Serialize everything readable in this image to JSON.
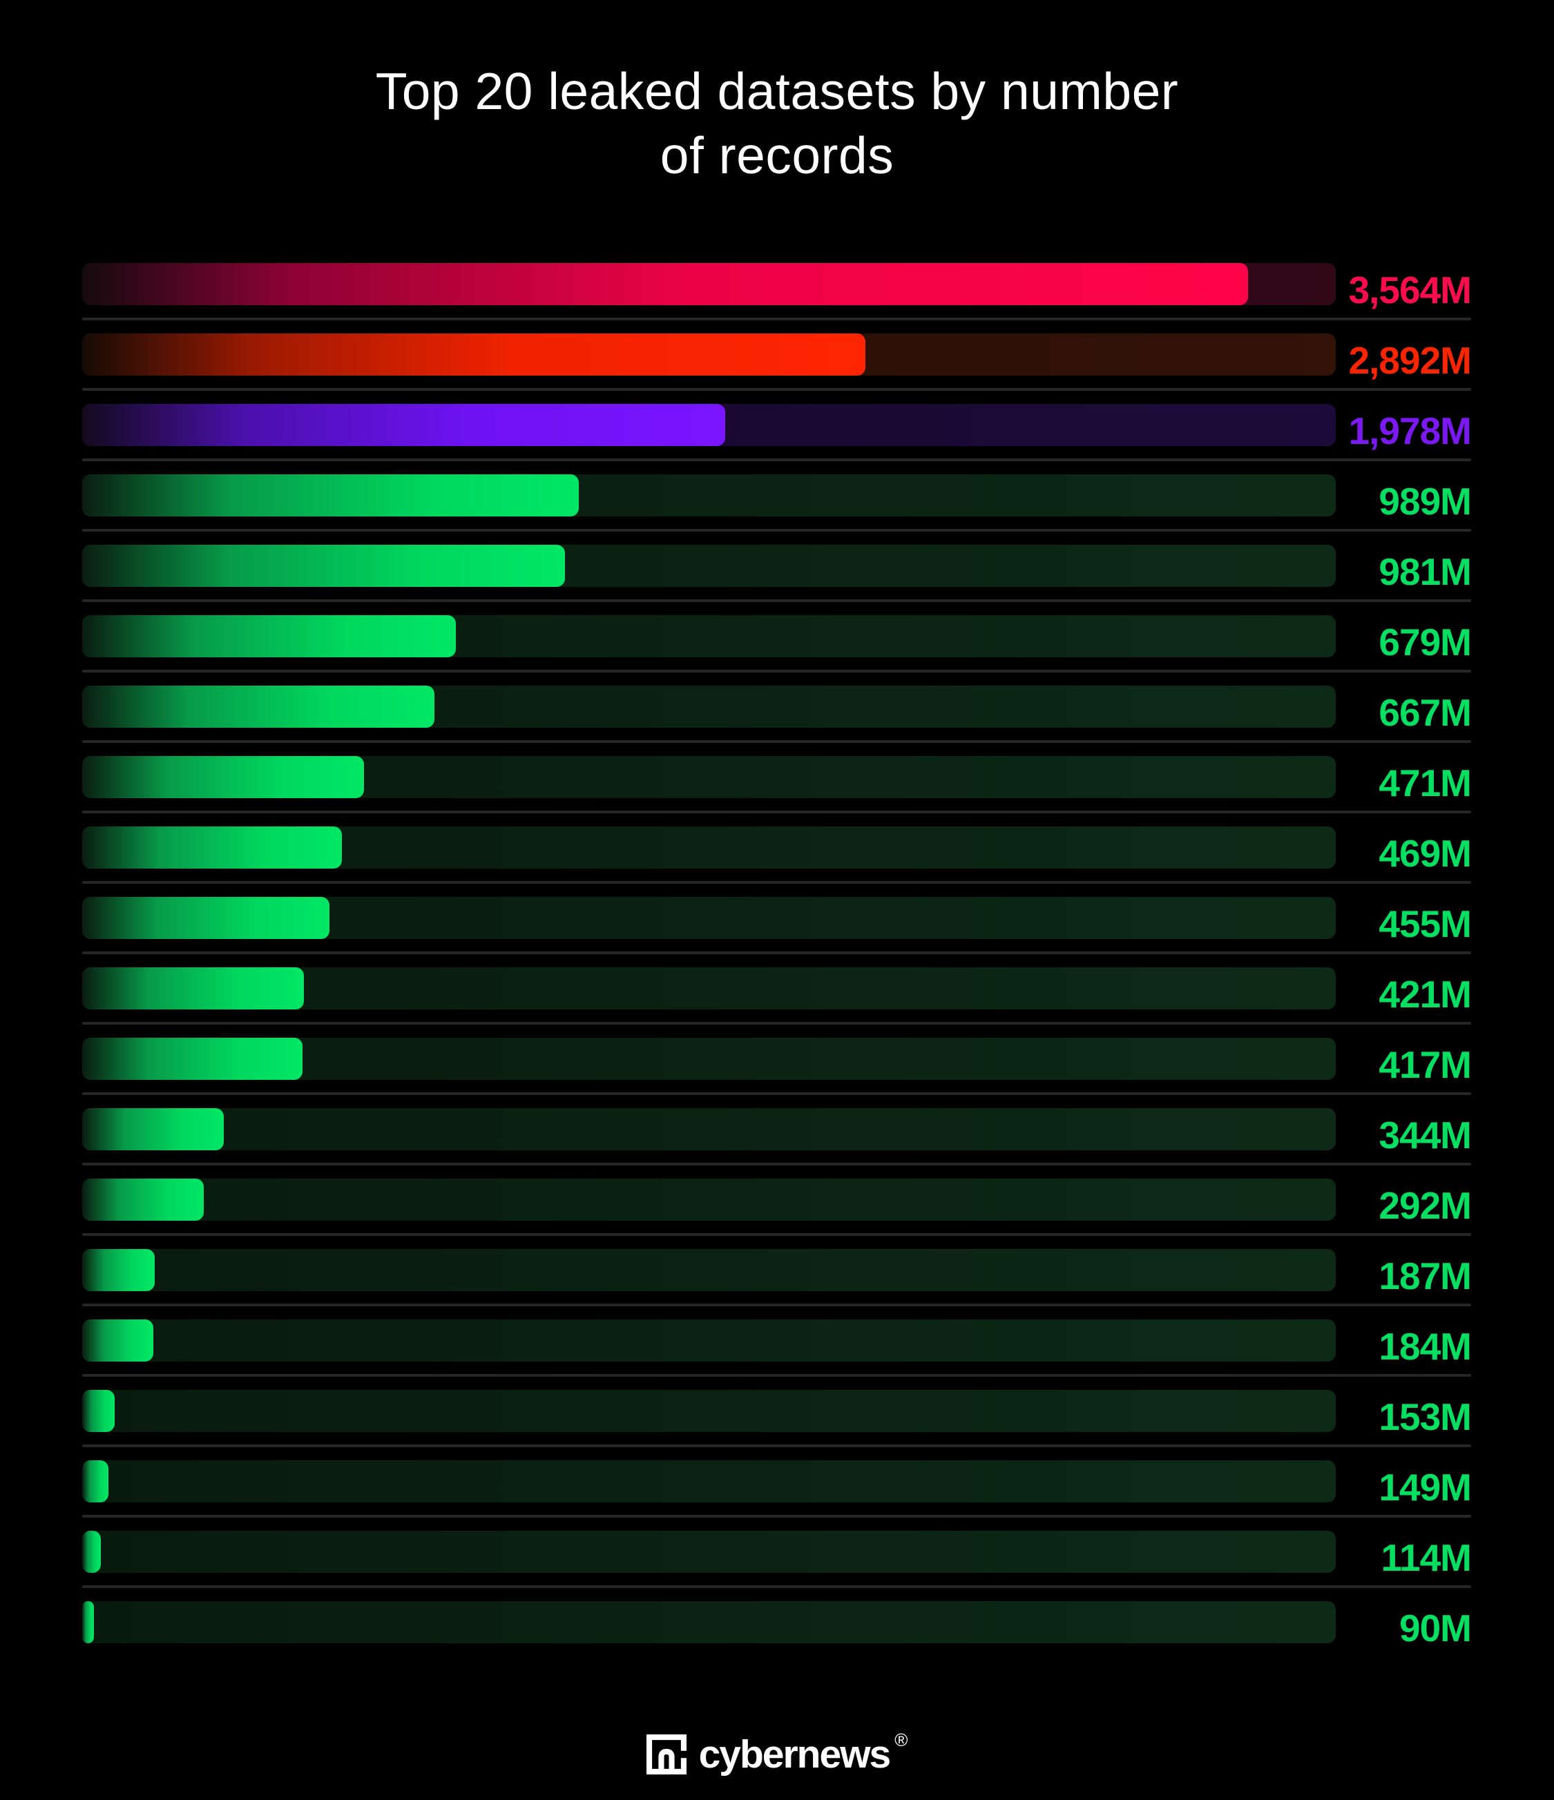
{
  "page": {
    "background": "#000000"
  },
  "title": {
    "line1": "Top 20 leaked datasets by number",
    "line2": "of records",
    "color": "#ffffff"
  },
  "chart_data": {
    "type": "bar",
    "orientation": "horizontal",
    "title": "Top 20 leaked datasets by number of records",
    "value_unit": "millions of records",
    "value_suffix": "M",
    "grid": false,
    "legend": false,
    "xlim": [
      0,
      3830
    ],
    "bars": [
      {
        "rank": 1,
        "label": "3,564M",
        "value_millions": 3564,
        "fill_pct": 93.0,
        "theme": "pink"
      },
      {
        "rank": 2,
        "label": "2,892M",
        "value_millions": 2892,
        "fill_pct": 62.5,
        "theme": "red"
      },
      {
        "rank": 3,
        "label": "1,978M",
        "value_millions": 1978,
        "fill_pct": 51.3,
        "theme": "purple"
      },
      {
        "rank": 4,
        "label": "989M",
        "value_millions": 989,
        "fill_pct": 39.6,
        "theme": "green"
      },
      {
        "rank": 5,
        "label": "981M",
        "value_millions": 981,
        "fill_pct": 38.5,
        "theme": "green"
      },
      {
        "rank": 6,
        "label": "679M",
        "value_millions": 679,
        "fill_pct": 29.8,
        "theme": "green"
      },
      {
        "rank": 7,
        "label": "667M",
        "value_millions": 667,
        "fill_pct": 28.1,
        "theme": "green"
      },
      {
        "rank": 8,
        "label": "471M",
        "value_millions": 471,
        "fill_pct": 22.5,
        "theme": "green"
      },
      {
        "rank": 9,
        "label": "469M",
        "value_millions": 469,
        "fill_pct": 20.7,
        "theme": "green"
      },
      {
        "rank": 10,
        "label": "455M",
        "value_millions": 455,
        "fill_pct": 19.7,
        "theme": "green"
      },
      {
        "rank": 11,
        "label": "421M",
        "value_millions": 421,
        "fill_pct": 17.7,
        "theme": "green"
      },
      {
        "rank": 12,
        "label": "417M",
        "value_millions": 417,
        "fill_pct": 17.6,
        "theme": "green"
      },
      {
        "rank": 13,
        "label": "344M",
        "value_millions": 344,
        "fill_pct": 11.3,
        "theme": "green"
      },
      {
        "rank": 14,
        "label": "292M",
        "value_millions": 292,
        "fill_pct": 9.7,
        "theme": "green"
      },
      {
        "rank": 15,
        "label": "187M",
        "value_millions": 187,
        "fill_pct": 5.8,
        "theme": "green"
      },
      {
        "rank": 16,
        "label": "184M",
        "value_millions": 184,
        "fill_pct": 5.7,
        "theme": "green"
      },
      {
        "rank": 17,
        "label": "153M",
        "value_millions": 153,
        "fill_pct": 2.6,
        "theme": "green"
      },
      {
        "rank": 18,
        "label": "149M",
        "value_millions": 149,
        "fill_pct": 2.1,
        "theme": "green"
      },
      {
        "rank": 19,
        "label": "114M",
        "value_millions": 114,
        "fill_pct": 1.5,
        "theme": "green"
      },
      {
        "rank": 20,
        "label": "90M",
        "value_millions": 90,
        "fill_pct": 0.95,
        "theme": "green"
      }
    ],
    "themes": {
      "pink": {
        "label_color": "#fb0c4d",
        "fill_stops": [
          "#150a0e 0%",
          "#8e0234 18%",
          "#ec0345 52%",
          "#ff0349 100%"
        ],
        "track_stops": [
          "#22050f",
          "#330918"
        ]
      },
      "red": {
        "label_color": "#f92501",
        "fill_stops": [
          "#160b05 0%",
          "#9c1a02 22%",
          "#f02200 55%",
          "#ff2502 100%"
        ],
        "track_stops": [
          "#230b04",
          "#331208"
        ]
      },
      "purple": {
        "label_color": "#7c19f2",
        "fill_stops": [
          "#130a1e 0%",
          "#4a10ab 25%",
          "#6e12f2 60%",
          "#7a15ff 100%"
        ],
        "track_stops": [
          "#150729",
          "#1e0a3a"
        ]
      },
      "green": {
        "label_color": "#06df61",
        "fill_stops": [
          "#0a1d10 0%",
          "#079a49 30%",
          "#00d75e 70%",
          "#00e765 100%"
        ],
        "track_stops": [
          "#081a0e",
          "#0d2a17"
        ]
      }
    },
    "row_separator_color": "#272727"
  },
  "footer": {
    "brand": "cybernews",
    "registered_mark": "®"
  }
}
